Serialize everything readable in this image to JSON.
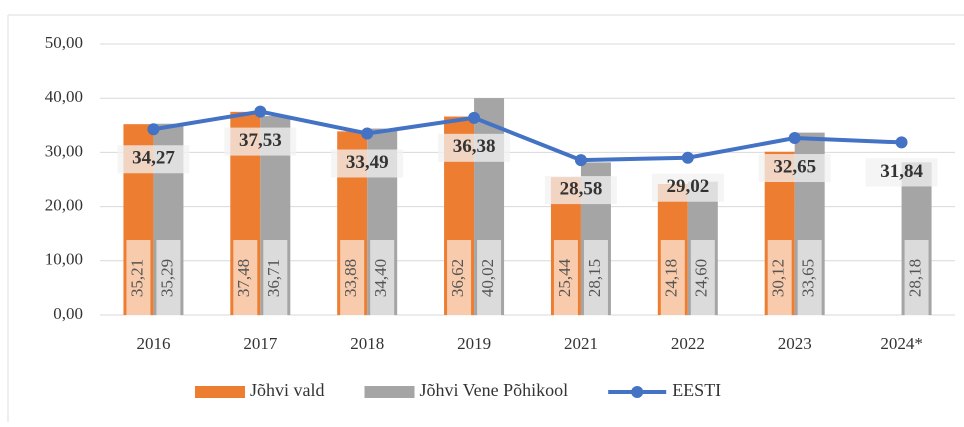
{
  "chart_data": {
    "type": "bar",
    "categories": [
      "2016",
      "2017",
      "2018",
      "2019",
      "2021",
      "2022",
      "2023",
      "2024*"
    ],
    "series": [
      {
        "name": "Jõhvi vald",
        "color": "#ed7d31",
        "values": [
          35.21,
          37.48,
          33.88,
          36.62,
          25.44,
          24.18,
          30.12,
          null
        ],
        "value_labels": [
          "35,21",
          "37,48",
          "33,88",
          "36,62",
          "25,44",
          "24,18",
          "30,12",
          null
        ]
      },
      {
        "name": "Jõhvi Vene Põhikool",
        "color": "#a5a5a5",
        "values": [
          35.29,
          36.71,
          34.4,
          40.02,
          28.15,
          24.6,
          33.65,
          28.18
        ],
        "value_labels": [
          "35,29",
          "36,71",
          "34,40",
          "40,02",
          "28,15",
          "24,60",
          "33,65",
          "28,18"
        ]
      },
      {
        "name": "EESTI",
        "type": "line",
        "color": "#4472c4",
        "values": [
          34.27,
          37.53,
          33.49,
          36.38,
          28.58,
          29.02,
          32.65,
          31.84
        ],
        "value_labels": [
          "34,27",
          "37,53",
          "33,49",
          "36,38",
          "28,58",
          "29,02",
          "32,65",
          "31,84"
        ]
      }
    ],
    "ylim": [
      0,
      50
    ],
    "yticks": [
      {
        "value": 0,
        "label": "0,00"
      },
      {
        "value": 10,
        "label": "10,00"
      },
      {
        "value": 20,
        "label": "20,00"
      },
      {
        "value": 30,
        "label": "30,00"
      },
      {
        "value": 40,
        "label": "40,00"
      },
      {
        "value": 50,
        "label": "50,00"
      }
    ],
    "grid": true,
    "legend": "bottom"
  }
}
